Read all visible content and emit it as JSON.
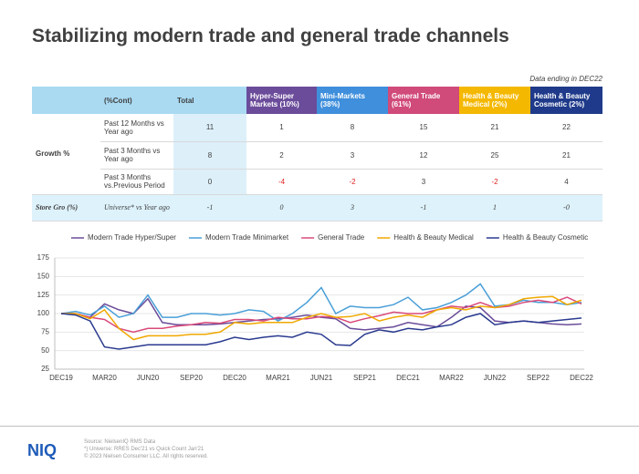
{
  "title": "Stabilizing modern trade and general trade channels",
  "note": "Data ending in DEC22",
  "table": {
    "header": [
      "(%Cont)",
      "Total",
      "Hyper-Super Markets (10%)",
      "Mini-Markets (38%)",
      "General Trade (61%)",
      "Health & Beauty Medical (2%)",
      "Health & Beauty Cosmetic (2%)"
    ],
    "group_label": "Growth %",
    "rows": [
      {
        "label": "Past 12 Months vs Year ago",
        "values": [
          "11",
          "1",
          "8",
          "15",
          "21",
          "22"
        ]
      },
      {
        "label": "Past 3 Months vs Year ago",
        "values": [
          "8",
          "2",
          "3",
          "12",
          "25",
          "21"
        ]
      },
      {
        "label": "Past 3 Months vs.Previous Period",
        "values": [
          "0",
          "-4",
          "-2",
          "3",
          "-2",
          "4"
        ]
      }
    ],
    "store_row": {
      "label": "Store Gro (%)",
      "sublabel": "Universe* vs Year ago",
      "values": [
        "-1",
        "0",
        "3",
        "-1",
        "1",
        "-0"
      ]
    }
  },
  "chart_data": {
    "type": "line",
    "categories": [
      "DEC19",
      null,
      null,
      "MAR20",
      null,
      null,
      "JUN20",
      null,
      null,
      "SEP20",
      null,
      null,
      "DEC20",
      null,
      null,
      "MAR21",
      null,
      null,
      "JUN21",
      null,
      null,
      "SEP21",
      null,
      null,
      "DEC21",
      null,
      null,
      "MAR22",
      null,
      null,
      "JUN22",
      null,
      null,
      "SEP22",
      null,
      null,
      "DEC22"
    ],
    "ylim": [
      25,
      175
    ],
    "yticks": [
      25,
      50,
      75,
      100,
      125,
      150,
      175
    ],
    "grid": true,
    "series": [
      {
        "name": "Modern Trade Hyper/Super",
        "color": "#6b4c9a",
        "values": [
          100,
          100,
          95,
          113,
          105,
          100,
          120,
          88,
          85,
          85,
          85,
          86,
          88,
          90,
          92,
          93,
          95,
          98,
          95,
          93,
          80,
          78,
          80,
          82,
          88,
          85,
          82,
          95,
          110,
          108,
          90,
          88,
          90,
          88,
          86,
          85,
          86
        ]
      },
      {
        "name": "Modern Trade Minimarket",
        "color": "#4a9fd8",
        "values": [
          100,
          103,
          98,
          110,
          95,
          100,
          125,
          95,
          95,
          100,
          100,
          98,
          100,
          105,
          103,
          90,
          100,
          115,
          135,
          100,
          110,
          108,
          108,
          112,
          122,
          105,
          108,
          115,
          125,
          140,
          110,
          112,
          118,
          115,
          115,
          112,
          115
        ]
      },
      {
        "name": "General Trade",
        "color": "#d94a7a",
        "values": [
          100,
          100,
          95,
          92,
          80,
          75,
          80,
          80,
          83,
          85,
          88,
          87,
          92,
          92,
          90,
          95,
          93,
          93,
          96,
          95,
          88,
          93,
          97,
          102,
          100,
          100,
          105,
          110,
          108,
          115,
          108,
          110,
          115,
          118,
          115,
          122,
          113
        ]
      },
      {
        "name": "Health & Beauty Medical",
        "color": "#f0a800",
        "values": [
          100,
          100,
          93,
          105,
          80,
          65,
          70,
          70,
          70,
          72,
          72,
          75,
          88,
          86,
          88,
          88,
          88,
          95,
          100,
          95,
          96,
          100,
          90,
          95,
          98,
          95,
          105,
          108,
          105,
          110,
          108,
          112,
          120,
          122,
          123,
          112,
          118
        ]
      },
      {
        "name": "Health & Beauty Cosmetic",
        "color": "#2a3a8f",
        "values": [
          100,
          98,
          90,
          55,
          52,
          55,
          58,
          58,
          58,
          58,
          58,
          62,
          68,
          65,
          68,
          70,
          68,
          75,
          72,
          58,
          57,
          72,
          78,
          75,
          80,
          78,
          82,
          85,
          95,
          100,
          85,
          88,
          90,
          88,
          90,
          92,
          94
        ]
      }
    ]
  },
  "footer": {
    "logo": "NIQ",
    "source": [
      "Source: NielsenIQ RMS Data",
      "*) Universe: RRES Dec'21 vs Quick Count Jan'21",
      "© 2023 Nielsen Consumer LLC. All rights reserved."
    ]
  }
}
